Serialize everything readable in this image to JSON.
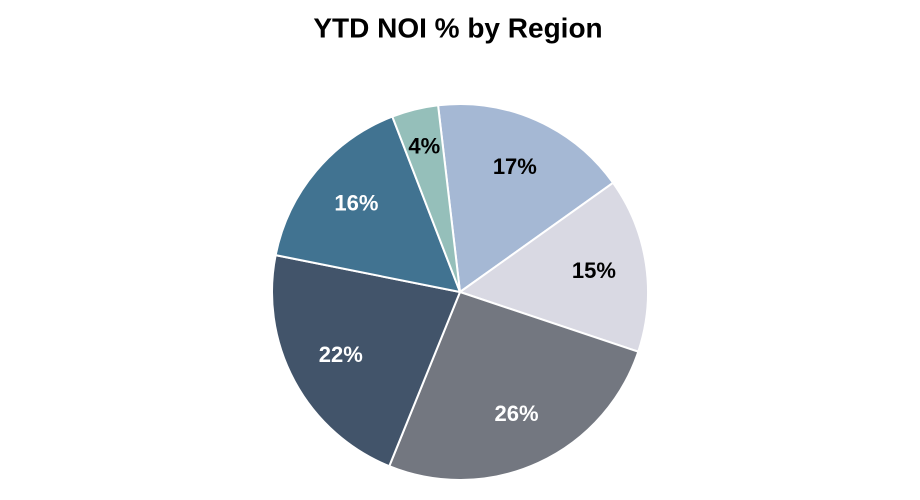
{
  "chart_data": {
    "type": "pie",
    "title": "YTD NOI % by Region",
    "values": [
      17,
      15,
      26,
      22,
      16,
      4
    ],
    "value_labels": [
      "17%",
      "15%",
      "26%",
      "22%",
      "16%",
      "4%"
    ],
    "colors": [
      "#a5b8d4",
      "#d9d9e3",
      "#737780",
      "#42546a",
      "#417391",
      "#95bfba"
    ]
  }
}
